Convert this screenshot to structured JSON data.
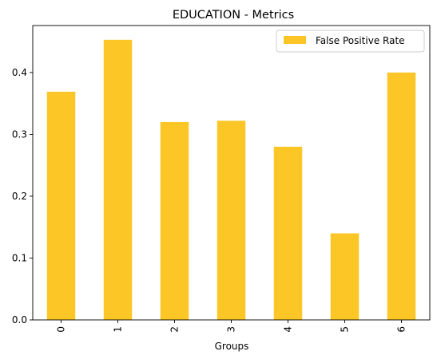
{
  "chart_data": {
    "type": "bar",
    "title": "EDUCATION - Metrics",
    "xlabel": "Groups",
    "ylabel": "",
    "categories": [
      "0",
      "1",
      "2",
      "3",
      "4",
      "5",
      "6"
    ],
    "series": [
      {
        "name": "False Positive Rate",
        "color": "#fcc726",
        "values": [
          0.369,
          0.453,
          0.32,
          0.322,
          0.28,
          0.14,
          0.4
        ]
      }
    ],
    "ylim": [
      0,
      0.476
    ],
    "yticks": [
      "0.0",
      "0.1",
      "0.2",
      "0.3",
      "0.4"
    ],
    "grid": false,
    "legend": "top-right"
  }
}
